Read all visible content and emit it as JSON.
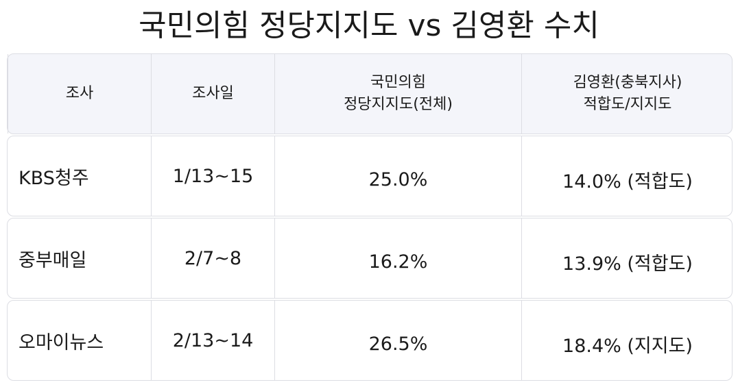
{
  "title": "국민의힘 정당지지도 vs 김영환 수치",
  "table": {
    "header": [
      [
        "조사"
      ],
      [
        "조사일"
      ],
      [
        "국민의힘",
        "정당지지도(전체)"
      ],
      [
        "김영환(충북지사)",
        "적합도/지지도"
      ]
    ],
    "rows": [
      [
        "KBS청주",
        "1/13~15",
        "25.0%",
        "14.0% (적합도)"
      ],
      [
        "중부매일",
        "2/7~8",
        "16.2%",
        "13.9% (적합도)"
      ],
      [
        "오마이뉴스",
        "2/13~14",
        "26.5%",
        "18.4% (지지도)"
      ]
    ]
  }
}
